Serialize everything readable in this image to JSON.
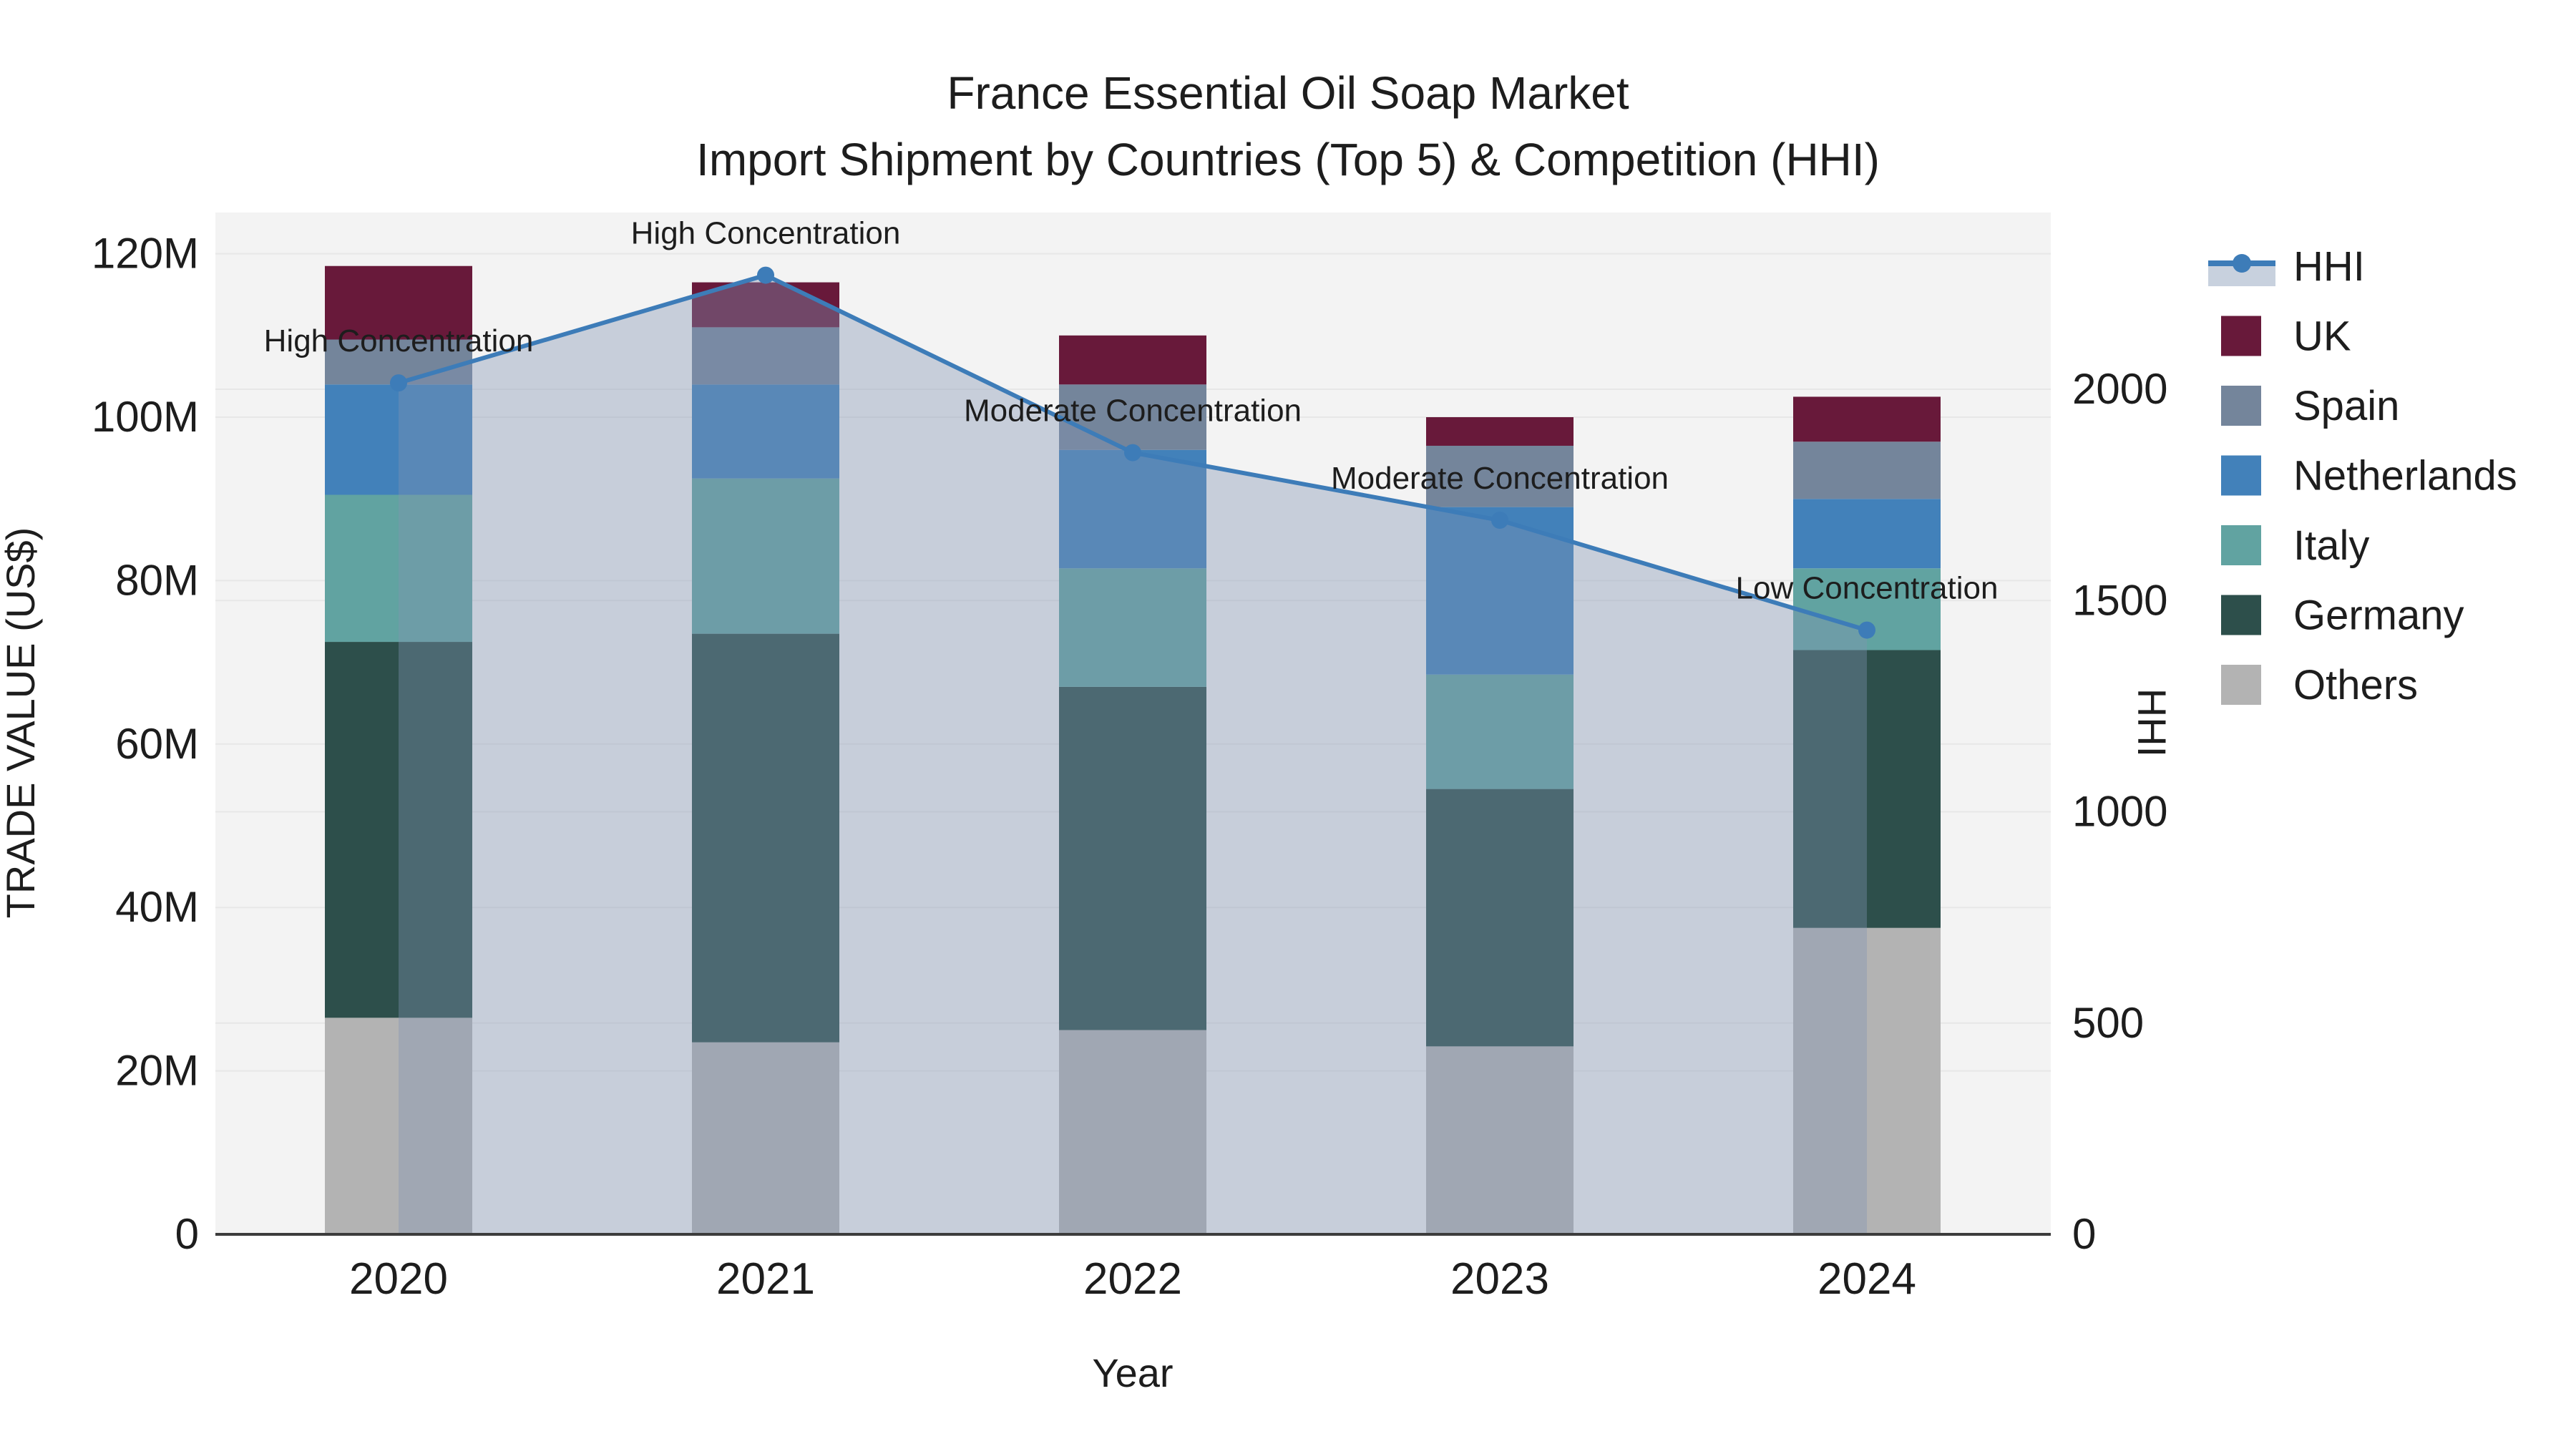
{
  "chart_data": {
    "type": "bar+line",
    "title": "France Essential Oil Soap Market",
    "subtitle": "Import Shipment by Countries (Top 5) & Competition (HHI)",
    "xlabel": "Year",
    "ylabel_left": "TRADE VALUE (US$)",
    "ylabel_right": "HHI",
    "categories": [
      "2020",
      "2021",
      "2022",
      "2023",
      "2024"
    ],
    "value_unit": "million US$",
    "stack_order_bottom_to_top": [
      "Others",
      "Germany",
      "Italy",
      "Netherlands",
      "Spain",
      "UK"
    ],
    "series": [
      {
        "name": "Others",
        "values": [
          26.5,
          23.5,
          25.0,
          23.0,
          37.5
        ]
      },
      {
        "name": "Germany",
        "values": [
          46.0,
          50.0,
          42.0,
          31.5,
          34.0
        ]
      },
      {
        "name": "Italy",
        "values": [
          18.0,
          19.0,
          14.5,
          14.0,
          10.0
        ]
      },
      {
        "name": "Netherlands",
        "values": [
          13.5,
          11.5,
          14.5,
          20.5,
          8.5
        ]
      },
      {
        "name": "Spain",
        "values": [
          5.5,
          7.0,
          8.0,
          7.5,
          7.0
        ]
      },
      {
        "name": "UK",
        "values": [
          9.0,
          5.5,
          6.0,
          3.5,
          5.5
        ]
      }
    ],
    "bar_totals": [
      118.5,
      116.5,
      110.0,
      100.0,
      102.5
    ],
    "line_series": {
      "name": "HHI",
      "values": [
        2015,
        2270,
        1850,
        1690,
        1430
      ]
    },
    "annotations": [
      {
        "x": "2020",
        "text": "High Concentration"
      },
      {
        "x": "2021",
        "text": "High Concentration"
      },
      {
        "x": "2022",
        "text": "Moderate Concentration"
      },
      {
        "x": "2023",
        "text": "Moderate Concentration"
      },
      {
        "x": "2024",
        "text": "Low Concentration"
      }
    ],
    "y_left": {
      "tick_values": [
        0,
        20,
        40,
        60,
        80,
        100,
        120
      ],
      "tick_labels": [
        "0",
        "20M",
        "40M",
        "60M",
        "80M",
        "100M",
        "120M"
      ],
      "range": [
        0,
        125
      ]
    },
    "y_right": {
      "tick_values": [
        0,
        500,
        1000,
        1500,
        2000
      ],
      "tick_labels": [
        "0",
        "500",
        "1000",
        "1500",
        "2000"
      ],
      "range": [
        0,
        2418
      ]
    },
    "grid": true,
    "legend_position": "right",
    "legend": [
      {
        "label": "HHI",
        "swatch": "line"
      },
      {
        "label": "UK",
        "swatch": "square"
      },
      {
        "label": "Spain",
        "swatch": "square"
      },
      {
        "label": "Netherlands",
        "swatch": "square"
      },
      {
        "label": "Italy",
        "swatch": "square"
      },
      {
        "label": "Germany",
        "swatch": "square"
      },
      {
        "label": "Others",
        "swatch": "square"
      }
    ]
  },
  "colors": {
    "UK": "#68193a",
    "Spain": "#74859b",
    "Netherlands": "#4281ba",
    "Italy": "#61a3a1",
    "Germany": "#2d4f4b",
    "Others": "#b3b3b3",
    "hhi_line": "#3d7cb8",
    "hhi_area_fill": "rgba(128,148,180,0.38)",
    "legend_area_swatch": "#c8d1de",
    "plot_background": "#f3f3f3",
    "gridline": "#e7e7e7",
    "axis_line": "#3c3c3c",
    "text": "#1d1d1d"
  }
}
